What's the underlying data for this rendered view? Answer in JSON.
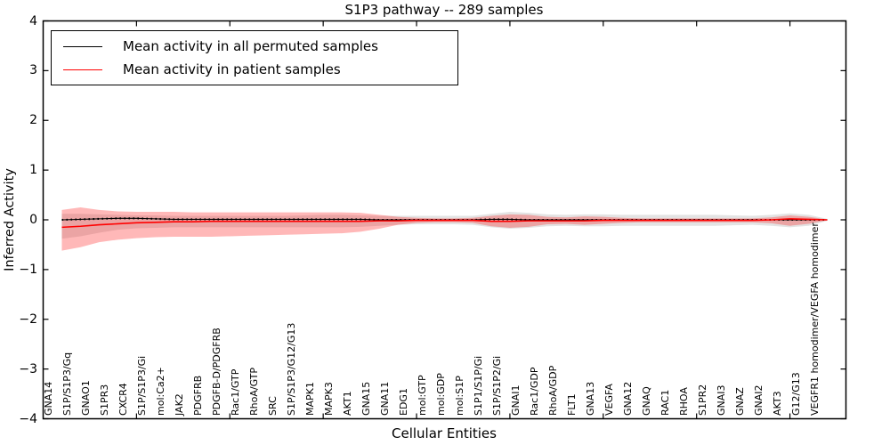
{
  "title": "S1P3 pathway -- 289 samples",
  "chart_data": {
    "type": "line",
    "title": "S1P3 pathway -- 289 samples",
    "xlabel": "Cellular Entities",
    "ylabel": "Inferred Activity",
    "ylim": [
      -4,
      4
    ],
    "yticks": [
      -4,
      -3,
      -2,
      -1,
      0,
      1,
      2,
      3,
      4
    ],
    "xticks": [
      5,
      10,
      15,
      20,
      25,
      30,
      35,
      40
    ],
    "grid": false,
    "legend_position": "upper left",
    "categories": [
      "GNA14",
      "S1P/S1P3/Gq",
      "GNAO1",
      "S1PR3",
      "CXCR4",
      "S1P/S1P3/Gi",
      "mol:Ca2+",
      "JAK2",
      "PDGFRB",
      "PDGFB-D/PDGFRB",
      "Rac1/GTP",
      "RhoA/GTP",
      "SRC",
      "S1P/S1P3/G12/G13",
      "MAPK1",
      "MAPK3",
      "AKT1",
      "GNA15",
      "GNA11",
      "EDG1",
      "mol:GTP",
      "mol:GDP",
      "mol:S1P",
      "S1P1/S1P/Gi",
      "S1P/S1P2/Gi",
      "GNAI1",
      "Rac1/GDP",
      "RhoA/GDP",
      "FLT1",
      "GNA13",
      "VEGFA",
      "GNA12",
      "GNAQ",
      "RAC1",
      "RHOA",
      "S1PR2",
      "GNAI3",
      "GNAZ",
      "GNAI2",
      "AKT3",
      "G12/G13",
      "VEGFR1 homodimer/VEGFA homodimer"
    ],
    "series": [
      {
        "name": "Mean activity in all permuted samples",
        "color": "#000000",
        "line_width": 1.1,
        "dotted_overlay": true,
        "values": [
          0.0,
          0.01,
          0.02,
          0.03,
          0.03,
          0.02,
          0.01,
          0.01,
          0.01,
          0.01,
          0.01,
          0.01,
          0.01,
          0.01,
          0.01,
          0.01,
          0.01,
          0.0,
          0.0,
          0.0,
          0.0,
          0.0,
          0.0,
          0.01,
          0.01,
          0.0,
          0.0,
          0.0,
          0.0,
          0.0,
          0.0,
          0.0,
          0.0,
          0.0,
          0.0,
          0.0,
          0.0,
          0.0,
          0.0,
          0.0,
          0.0,
          0.0
        ],
        "band_upper": [
          0.12,
          0.12,
          0.11,
          0.1,
          0.09,
          0.09,
          0.08,
          0.08,
          0.08,
          0.08,
          0.08,
          0.08,
          0.08,
          0.09,
          0.1,
          0.1,
          0.09,
          0.08,
          0.08,
          0.08,
          0.08,
          0.08,
          0.08,
          0.12,
          0.16,
          0.14,
          0.11,
          0.1,
          0.11,
          0.11,
          0.1,
          0.1,
          0.1,
          0.1,
          0.1,
          0.1,
          0.09,
          0.08,
          0.1,
          0.13,
          0.1,
          0.02
        ],
        "band_lower": [
          -0.38,
          -0.33,
          -0.26,
          -0.2,
          -0.17,
          -0.16,
          -0.15,
          -0.15,
          -0.15,
          -0.15,
          -0.15,
          -0.15,
          -0.15,
          -0.15,
          -0.15,
          -0.15,
          -0.14,
          -0.12,
          -0.1,
          -0.09,
          -0.09,
          -0.09,
          -0.1,
          -0.15,
          -0.18,
          -0.16,
          -0.13,
          -0.12,
          -0.13,
          -0.13,
          -0.12,
          -0.12,
          -0.12,
          -0.12,
          -0.12,
          -0.12,
          -0.11,
          -0.1,
          -0.12,
          -0.15,
          -0.12,
          -0.02
        ],
        "band_color": "#000000",
        "band_opacity": 0.11
      },
      {
        "name": "Mean activity in patient samples",
        "color": "#ff0000",
        "line_width": 1.6,
        "dotted_overlay": false,
        "values": [
          -0.15,
          -0.13,
          -0.1,
          -0.08,
          -0.06,
          -0.05,
          -0.04,
          -0.04,
          -0.03,
          -0.03,
          -0.03,
          -0.03,
          -0.03,
          -0.03,
          -0.03,
          -0.03,
          -0.03,
          -0.02,
          -0.02,
          -0.01,
          -0.01,
          -0.01,
          -0.01,
          -0.03,
          -0.03,
          -0.02,
          -0.02,
          -0.02,
          -0.02,
          -0.01,
          -0.01,
          -0.01,
          -0.01,
          -0.01,
          -0.01,
          -0.01,
          -0.01,
          -0.01,
          0.0,
          0.02,
          0.01,
          0.0
        ],
        "band_upper": [
          0.2,
          0.25,
          0.2,
          0.17,
          0.16,
          0.16,
          0.16,
          0.15,
          0.15,
          0.15,
          0.15,
          0.15,
          0.15,
          0.15,
          0.15,
          0.15,
          0.14,
          0.1,
          0.06,
          0.04,
          0.03,
          0.03,
          0.04,
          0.08,
          0.11,
          0.1,
          0.06,
          0.05,
          0.07,
          0.06,
          0.04,
          0.03,
          0.03,
          0.03,
          0.03,
          0.03,
          0.03,
          0.03,
          0.05,
          0.09,
          0.06,
          0.01
        ],
        "band_lower": [
          -0.62,
          -0.55,
          -0.45,
          -0.4,
          -0.37,
          -0.35,
          -0.34,
          -0.34,
          -0.34,
          -0.33,
          -0.32,
          -0.31,
          -0.3,
          -0.29,
          -0.28,
          -0.27,
          -0.24,
          -0.18,
          -0.1,
          -0.06,
          -0.05,
          -0.05,
          -0.06,
          -0.13,
          -0.16,
          -0.14,
          -0.09,
          -0.08,
          -0.1,
          -0.08,
          -0.06,
          -0.05,
          -0.05,
          -0.05,
          -0.05,
          -0.05,
          -0.05,
          -0.05,
          -0.07,
          -0.12,
          -0.08,
          -0.01
        ],
        "band_color": "#ff0000",
        "band_opacity": 0.28
      }
    ]
  }
}
